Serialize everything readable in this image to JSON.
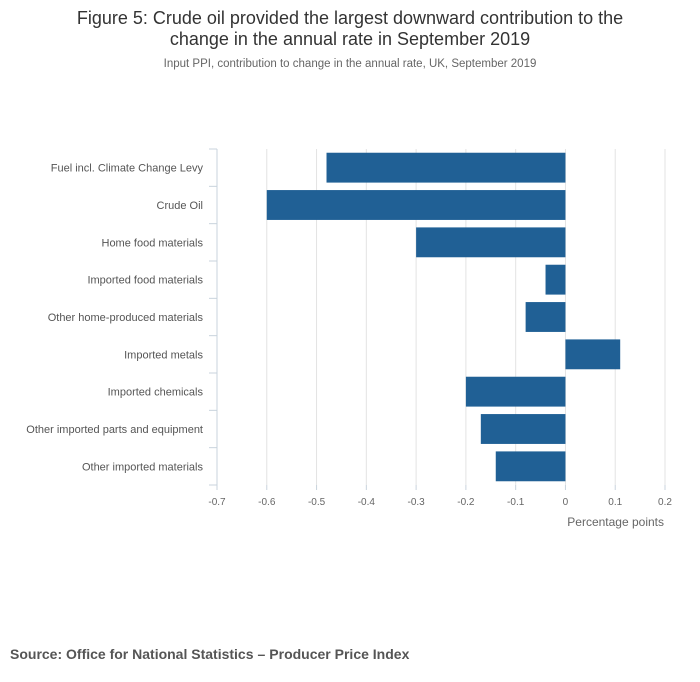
{
  "header": {
    "title_line1": "Figure 5: Crude oil provided the largest downward contribution to the",
    "title_line2": "change in the annual rate in September 2019",
    "subtitle": "Input PPI, contribution to change in the annual rate, UK, September 2019"
  },
  "footer": {
    "source_label": "Source: Office for National Statistics",
    "source_sep": "–",
    "source_detail": "Producer Price Index"
  },
  "chart_data": {
    "type": "bar",
    "orientation": "horizontal",
    "categories": [
      "Fuel incl. Climate Change Levy",
      "Crude Oil",
      "Home food materials",
      "Imported food materials",
      "Other home-produced materials",
      "Imported metals",
      "Imported chemicals",
      "Other imported parts and equipment",
      "Other imported materials"
    ],
    "values": [
      -0.48,
      -0.6,
      -0.3,
      -0.04,
      -0.08,
      0.11,
      -0.2,
      -0.17,
      -0.14
    ],
    "xlabel": "Percentage points",
    "xlim": [
      -0.7,
      0.2
    ],
    "ticks": [
      -0.7,
      -0.6,
      -0.5,
      -0.4,
      -0.3,
      -0.2,
      -0.1,
      0,
      0.1,
      0.2
    ],
    "tick_labels": [
      "-0.7",
      "-0.6",
      "-0.5",
      "-0.4",
      "-0.3",
      "-0.2",
      "-0.1",
      "0",
      "0.1",
      "0.2"
    ],
    "bar_color": "#206095",
    "grid": true
  }
}
